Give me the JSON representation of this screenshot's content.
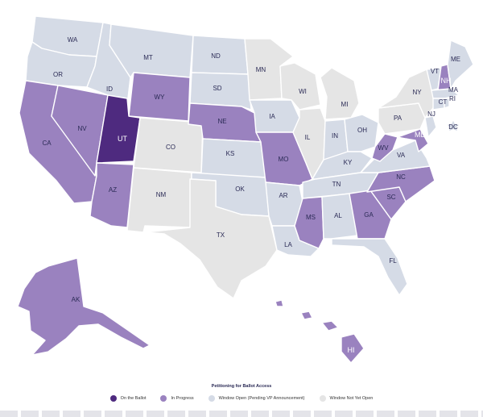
{
  "colors": {
    "on_ballot": "#4e2a7f",
    "in_progress": "#9a82bf",
    "window_open": "#d5dbe6",
    "not_open": "#e5e5e5"
  },
  "states": {
    "WA": "WA",
    "OR": "OR",
    "CA": "CA",
    "NV": "NV",
    "ID": "ID",
    "MT": "MT",
    "WY": "WY",
    "UT": "UT",
    "CO": "CO",
    "AZ": "AZ",
    "NM": "NM",
    "ND": "ND",
    "SD": "SD",
    "NE": "NE",
    "KS": "KS",
    "OK": "OK",
    "TX": "TX",
    "MN": "MN",
    "IA": "IA",
    "MO": "MO",
    "AR": "AR",
    "LA": "LA",
    "WI": "WI",
    "IL": "IL",
    "MI": "MI",
    "IN": "IN",
    "OH": "OH",
    "KY": "KY",
    "TN": "TN",
    "MS": "MS",
    "AL": "AL",
    "GA": "GA",
    "FL": "FL",
    "SC": "SC",
    "NC": "NC",
    "VA": "VA",
    "WV": "WV",
    "PA": "PA",
    "NY": "NY",
    "VT": "VT",
    "NH": "NH",
    "ME": "ME",
    "MA": "MA",
    "RI": "RI",
    "CT": "CT",
    "NJ": "NJ",
    "MD": "MD",
    "DC": "DC",
    "AK": "AK",
    "HI": "HI"
  },
  "legend": {
    "title": "Petitioning for Ballot Access",
    "items": [
      {
        "label": "On the Ballot",
        "color": "#4e2a7f"
      },
      {
        "label": "In Progress",
        "color": "#9a82bf"
      },
      {
        "label": "Window Open (Pending VP Announcement)",
        "color": "#d5dbe6"
      },
      {
        "label": "Window Not Yet Open",
        "color": "#e5e5e5"
      }
    ]
  }
}
